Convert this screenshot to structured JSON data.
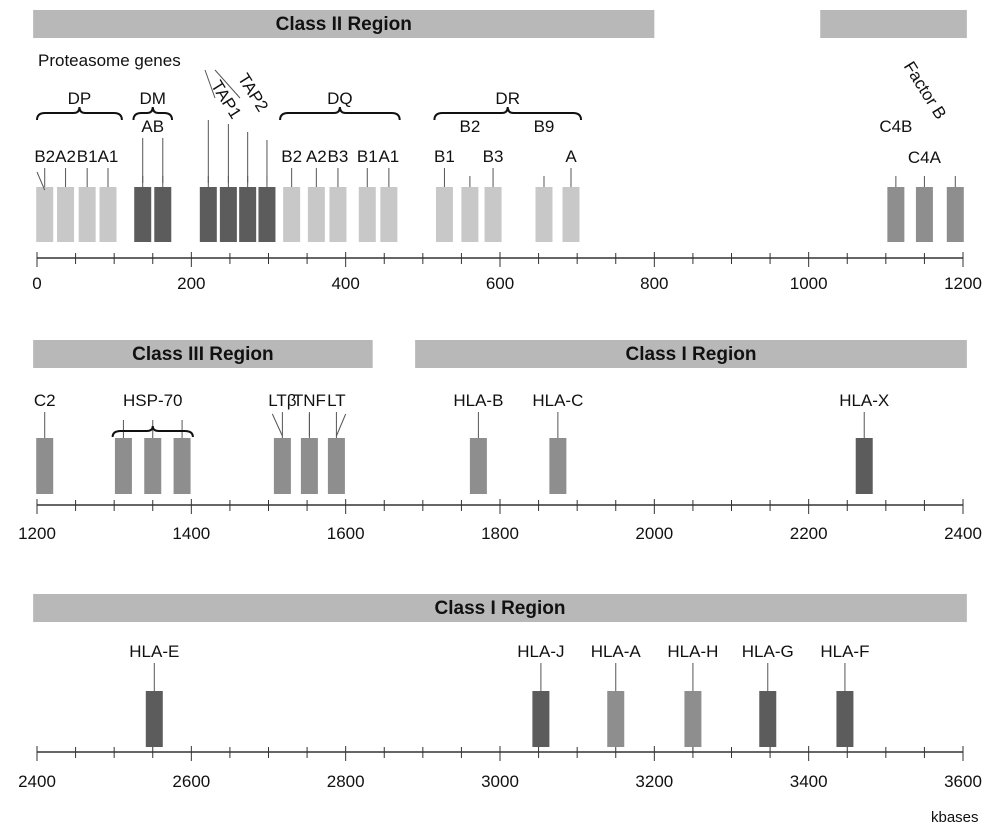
{
  "unit_label": "kbases",
  "annotation": "Proteasome genes",
  "colors": {
    "light": "#c8c8c8",
    "medium": "#8e8e8e",
    "dark": "#5c5c5c",
    "bar": "#b8b8b8",
    "axis": "#333333"
  },
  "rows": [
    {
      "id": "row1",
      "range": [
        0,
        1200
      ],
      "ticks": [
        0,
        200,
        400,
        600,
        800,
        1000,
        1200
      ],
      "regions": [
        {
          "label": "Class II Region",
          "start": -5,
          "end": 800
        },
        {
          "label": "",
          "start": 1015,
          "end": 1205
        }
      ],
      "genes": [
        {
          "label": "B2",
          "pos": 10,
          "shade": "light"
        },
        {
          "label": "A2",
          "pos": 37,
          "shade": "light"
        },
        {
          "label": "B1",
          "pos": 65,
          "shade": "light"
        },
        {
          "label": "A1",
          "pos": 92,
          "shade": "light"
        },
        {
          "label": "",
          "pos": 137,
          "shade": "dark"
        },
        {
          "label": "",
          "pos": 163,
          "shade": "dark"
        },
        {
          "label": "",
          "pos": 222,
          "shade": "dark"
        },
        {
          "label": "",
          "pos": 248,
          "shade": "dark"
        },
        {
          "label": "",
          "pos": 273,
          "shade": "dark"
        },
        {
          "label": "",
          "pos": 298,
          "shade": "dark"
        },
        {
          "label": "B2",
          "pos": 330,
          "shade": "light"
        },
        {
          "label": "A2",
          "pos": 362,
          "shade": "light"
        },
        {
          "label": "B3",
          "pos": 390,
          "shade": "light"
        },
        {
          "label": "B1",
          "pos": 428,
          "shade": "light"
        },
        {
          "label": "A1",
          "pos": 456,
          "shade": "light"
        },
        {
          "label": "B1",
          "pos": 528,
          "shade": "light"
        },
        {
          "label": "",
          "pos": 561,
          "shade": "light"
        },
        {
          "label": "B3",
          "pos": 591,
          "shade": "light"
        },
        {
          "label": "",
          "pos": 657,
          "shade": "light"
        },
        {
          "label": "A",
          "pos": 692,
          "shade": "light"
        },
        {
          "label": "",
          "pos": 1113,
          "shade": "medium"
        },
        {
          "label": "",
          "pos": 1150,
          "shade": "medium"
        },
        {
          "label": "",
          "pos": 1190,
          "shade": "medium"
        }
      ],
      "group_labels": [
        {
          "label": "DP",
          "from": 0,
          "to": 110
        },
        {
          "label": "DM",
          "from": 125,
          "to": 175
        },
        {
          "label": "DQ",
          "from": 315,
          "to": 470
        },
        {
          "label": "DR",
          "from": 515,
          "to": 705
        }
      ],
      "extra_labels": [
        {
          "label": "AB",
          "pos": 150
        },
        {
          "label": "B2",
          "pos": 561
        },
        {
          "label": "B9",
          "pos": 657
        },
        {
          "label": "C4B",
          "pos": 1113
        },
        {
          "label": "C4A",
          "pos": 1150
        }
      ],
      "rotated_labels": [
        {
          "label": "TAP1",
          "pos": 230
        },
        {
          "label": "TAP2",
          "pos": 270
        },
        {
          "label": "Factor B",
          "pos": 1190
        }
      ]
    },
    {
      "id": "row2",
      "range": [
        1200,
        2400
      ],
      "ticks": [
        1200,
        1400,
        1600,
        1800,
        2000,
        2200,
        2400
      ],
      "regions": [
        {
          "label": "Class III Region",
          "start": 1195,
          "end": 1635
        },
        {
          "label": "Class I Region",
          "start": 1690,
          "end": 2405
        }
      ],
      "genes": [
        {
          "label": "C2",
          "pos": 1210,
          "shade": "medium"
        },
        {
          "label": "",
          "pos": 1312,
          "shade": "medium"
        },
        {
          "label": "",
          "pos": 1350,
          "shade": "medium"
        },
        {
          "label": "",
          "pos": 1388,
          "shade": "medium"
        },
        {
          "label": "LTβ",
          "pos": 1518,
          "shade": "medium"
        },
        {
          "label": "TNF",
          "pos": 1553,
          "shade": "medium"
        },
        {
          "label": "LT",
          "pos": 1588,
          "shade": "medium"
        },
        {
          "label": "HLA-B",
          "pos": 1772,
          "shade": "medium"
        },
        {
          "label": "HLA-C",
          "pos": 1875,
          "shade": "medium"
        },
        {
          "label": "HLA-X",
          "pos": 2272,
          "shade": "dark"
        }
      ],
      "group_labels": [
        {
          "label": "HSP-70",
          "from": 1298,
          "to": 1402
        }
      ]
    },
    {
      "id": "row3",
      "range": [
        2400,
        3600
      ],
      "ticks": [
        2400,
        2600,
        2800,
        3000,
        3200,
        3400,
        3600
      ],
      "regions": [
        {
          "label": "Class I Region",
          "start": 2395,
          "end": 3605
        }
      ],
      "genes": [
        {
          "label": "HLA-E",
          "pos": 2552,
          "shade": "dark"
        },
        {
          "label": "HLA-J",
          "pos": 3053,
          "shade": "dark"
        },
        {
          "label": "HLA-A",
          "pos": 3150,
          "shade": "medium"
        },
        {
          "label": "HLA-H",
          "pos": 3250,
          "shade": "medium"
        },
        {
          "label": "HLA-G",
          "pos": 3347,
          "shade": "dark"
        },
        {
          "label": "HLA-F",
          "pos": 3447,
          "shade": "dark"
        }
      ],
      "group_labels": []
    }
  ]
}
